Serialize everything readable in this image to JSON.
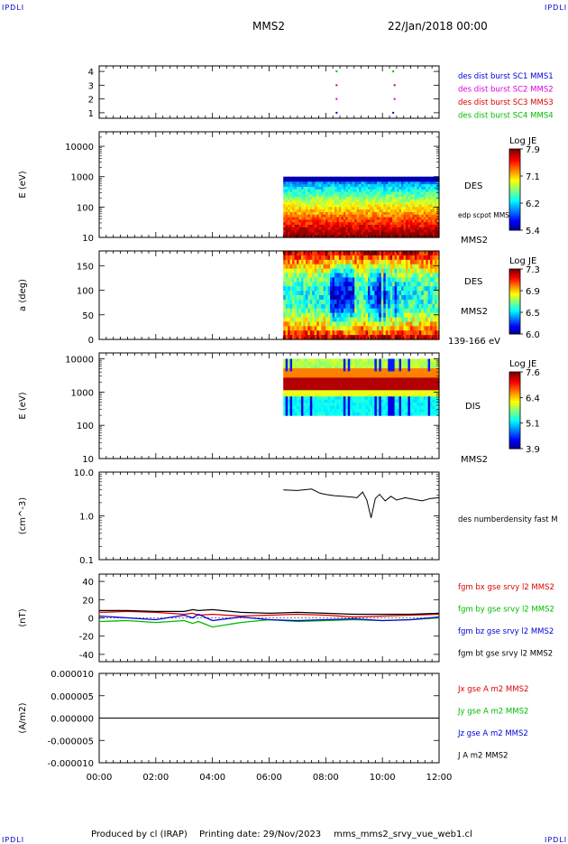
{
  "header": {
    "corner_tag": "IPDLI",
    "title": "MMS2",
    "datetime": "22/Jan/2018 00:00"
  },
  "footer": {
    "produced_by": "Produced by cl (IRAP)",
    "printing_date": "Printing date: 29/Nov/2023",
    "filename": "mms_mms2_srvy_vue_web1.cl"
  },
  "time_axis": {
    "tick_labels": [
      "00:00",
      "02:00",
      "04:00",
      "06:00",
      "08:00",
      "10:00",
      "12:00"
    ],
    "range_hours": [
      0,
      12
    ]
  },
  "colors": {
    "blue": "#0000dd",
    "magenta": "#dd00dd",
    "red": "#dd0000",
    "green": "#00bb00",
    "black": "#000000"
  },
  "chart_data": [
    {
      "type": "scatter",
      "panel": "burst",
      "ylim": [
        0.6,
        4.4
      ],
      "ytick_labels": [
        "1",
        "2",
        "3",
        "4"
      ],
      "legend": [
        {
          "label": "des dist burst SC1 MMS1",
          "color": "#0000dd"
        },
        {
          "label": "des dist burst SC2 MMS2",
          "color": "#dd00dd"
        },
        {
          "label": "des dist burst SC3 MMS3",
          "color": "#dd0000"
        },
        {
          "label": "des dist burst SC4 MMS4",
          "color": "#00bb00"
        }
      ],
      "series": [
        {
          "sc": 4,
          "color": "#00bb00",
          "x": [
            8.35,
            10.35
          ]
        },
        {
          "sc": 3,
          "color": "#dd0000",
          "x": [
            8.35,
            10.4
          ]
        },
        {
          "sc": 2,
          "color": "#dd00dd",
          "x": [
            8.35,
            10.4
          ]
        },
        {
          "sc": 1,
          "color": "#0000dd",
          "x": [
            8.35,
            10.35
          ]
        }
      ]
    },
    {
      "type": "heatmap",
      "panel": "des_energy",
      "ylabel": "E (eV)",
      "ylog": true,
      "ylim": [
        10,
        30000
      ],
      "ytick_labels": [
        "10",
        "100",
        "1000",
        "10000"
      ],
      "ytick_values": [
        10,
        100,
        1000,
        10000
      ],
      "data_x_range": [
        6.5,
        12
      ],
      "data_y_range": [
        10,
        1000
      ],
      "label": "DES",
      "extra_label": "edp scpot MMS2",
      "sat_label": "MMS2",
      "colorbar": {
        "title": "Log JE",
        "tick_labels": [
          "7.9",
          "7.1",
          "6.2",
          "5.4"
        ],
        "min": 5.4,
        "max": 7.9
      }
    },
    {
      "type": "heatmap",
      "panel": "des_pitch",
      "ylabel": "a (deg)",
      "ylim": [
        0,
        180
      ],
      "ytick_labels": [
        "0",
        "50",
        "100",
        "150"
      ],
      "ytick_values": [
        0,
        50,
        100,
        150
      ],
      "data_x_range": [
        6.5,
        12
      ],
      "label": "DES",
      "sat_label": "MMS2",
      "energy_label": "139-166 eV",
      "colorbar": {
        "title": "Log JE",
        "tick_labels": [
          "7.3",
          "6.9",
          "6.5",
          "6.0"
        ],
        "min": 6.0,
        "max": 7.3
      }
    },
    {
      "type": "heatmap",
      "panel": "dis_energy",
      "ylabel": "E (eV)",
      "ylog": true,
      "ylim": [
        10,
        15000
      ],
      "ytick_labels": [
        "10",
        "100",
        "1000",
        "10000"
      ],
      "ytick_values": [
        10,
        100,
        1000,
        10000
      ],
      "data_x_range": [
        6.5,
        12
      ],
      "data_y_range": [
        200,
        10000
      ],
      "label": "DIS",
      "sat_label": "MMS2",
      "colorbar": {
        "title": "Log JE",
        "tick_labels": [
          "7.6",
          "6.4",
          "5.1",
          "3.9"
        ],
        "min": 3.9,
        "max": 7.6
      }
    },
    {
      "type": "line",
      "panel": "density",
      "ylabel": "(cm^-3)",
      "ylog": true,
      "ylim": [
        0.1,
        10
      ],
      "ytick_labels": [
        "0.1",
        "1.0",
        "10.0"
      ],
      "ytick_values": [
        0.1,
        1,
        10
      ],
      "legend": [
        {
          "label": "des numberdensity fast M",
          "color": "#000000"
        }
      ],
      "x": [
        6.5,
        7.0,
        7.5,
        7.8,
        8.0,
        8.3,
        8.6,
        8.9,
        9.1,
        9.3,
        9.45,
        9.6,
        9.75,
        9.9,
        10.1,
        10.3,
        10.5,
        10.8,
        11.1,
        11.4,
        11.7,
        12.0
      ],
      "y": [
        3.9,
        3.8,
        4.1,
        3.3,
        3.1,
        2.9,
        2.8,
        2.7,
        2.6,
        3.5,
        2.3,
        0.9,
        2.5,
        3.1,
        2.2,
        2.8,
        2.3,
        2.6,
        2.4,
        2.2,
        2.5,
        2.6
      ]
    },
    {
      "type": "line",
      "panel": "fgm",
      "ylabel": "(nT)",
      "ylim": [
        -48,
        48
      ],
      "ytick_labels": [
        "-40",
        "-20",
        "0",
        "20",
        "40"
      ],
      "ytick_values": [
        -40,
        -20,
        0,
        20,
        40
      ],
      "x": [
        0,
        1,
        2,
        3,
        3.3,
        3.5,
        4,
        5,
        6,
        7,
        8,
        9,
        10,
        11,
        12
      ],
      "series": [
        {
          "name": "fgm bx gse srvy l2 MMS2",
          "color": "#dd0000",
          "y": [
            6,
            7,
            6,
            4,
            5,
            3,
            4,
            2,
            3,
            4,
            3,
            1,
            2,
            3,
            4
          ]
        },
        {
          "name": "fgm by gse srvy l2 MMS2",
          "color": "#00bb00",
          "y": [
            -4,
            -3,
            -5,
            -3,
            -6,
            -4,
            -10,
            -5,
            -2,
            -4,
            -3,
            -2,
            -3,
            -2,
            0
          ]
        },
        {
          "name": "fgm bz gse srvy l2 MMS2",
          "color": "#0000dd",
          "y": [
            2,
            0,
            -2,
            3,
            0,
            4,
            -3,
            1,
            -2,
            -3,
            -2,
            -1,
            -3,
            -2,
            1
          ]
        },
        {
          "name": "fgm bt gse srvy l2 MMS2",
          "color": "#000000",
          "y": [
            8,
            8,
            7,
            7,
            9,
            8,
            9,
            6,
            5,
            6,
            5,
            4,
            4,
            4,
            5
          ]
        }
      ]
    },
    {
      "type": "line",
      "panel": "current",
      "ylabel": "(A/m2)",
      "ylim": [
        -1e-05,
        1e-05
      ],
      "ytick_labels": [
        "-0.000010",
        "-0.000005",
        "0.000000",
        "0.000005",
        "0.000010"
      ],
      "ytick_values": [
        -1e-05,
        -5e-06,
        0,
        5e-06,
        1e-05
      ],
      "x": [
        0,
        12
      ],
      "series": [
        {
          "name": "Jx gse A m2 MMS2",
          "color": "#dd0000",
          "y": [
            0,
            0
          ]
        },
        {
          "name": "Jy gse A m2 MMS2",
          "color": "#00bb00",
          "y": [
            0,
            0
          ]
        },
        {
          "name": "Jz gse A m2 MMS2",
          "color": "#0000dd",
          "y": [
            0,
            0
          ]
        },
        {
          "name": "J A m2 MMS2",
          "color": "#000000",
          "y": [
            0,
            0
          ]
        }
      ]
    }
  ]
}
